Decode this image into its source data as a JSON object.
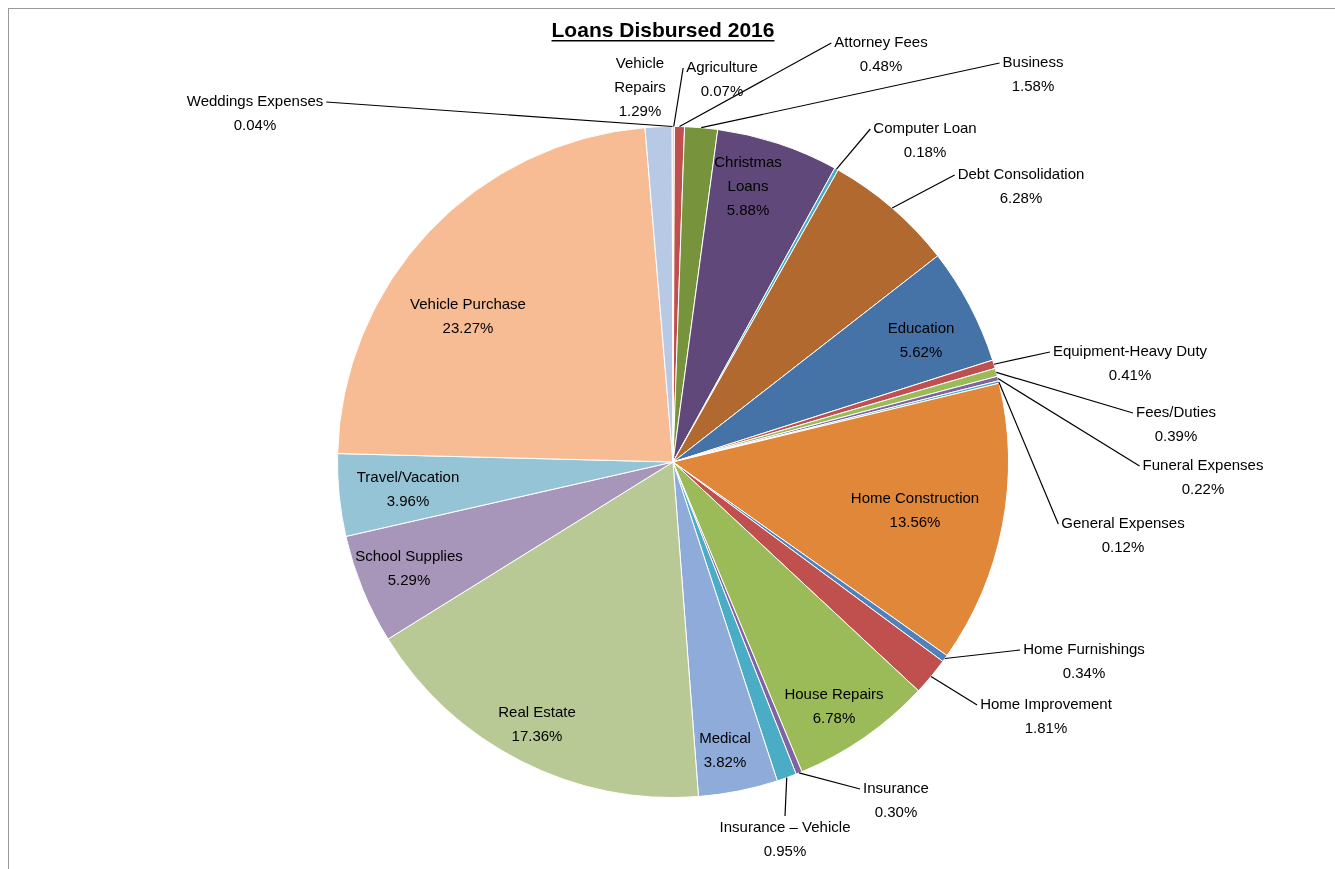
{
  "chart_data": {
    "type": "pie",
    "title": "Loans Disbursed 2016",
    "categories": [
      "Agriculture",
      "Attorney Fees",
      "Business",
      "Christmas Loans",
      "Computer Loan",
      "Debt Consolidation",
      "Education",
      "Equipment-Heavy Duty",
      "Fees/Duties",
      "Funeral Expenses",
      "General Expenses",
      "Home Construction",
      "Home Furnishings",
      "Home Improvement",
      "House Repairs",
      "Insurance",
      "Insurance – Vehicle",
      "Medical",
      "Real Estate",
      "School Supplies",
      "Travel/Vacation",
      "Vehicle Purchase",
      "Vehicle Repairs",
      "Weddings Expenses"
    ],
    "values": [
      0.07,
      0.48,
      1.58,
      5.88,
      0.18,
      6.28,
      5.62,
      0.41,
      0.39,
      0.22,
      0.12,
      13.56,
      0.34,
      1.81,
      6.78,
      0.3,
      0.95,
      3.82,
      17.36,
      5.29,
      3.96,
      23.27,
      1.29,
      0.04
    ],
    "value_labels": [
      "0.07%",
      "0.48%",
      "1.58%",
      "5.88%",
      "0.18%",
      "6.28%",
      "5.62%",
      "0.41%",
      "0.39%",
      "0.22%",
      "0.12%",
      "13.56%",
      "0.34%",
      "1.81%",
      "6.78%",
      "0.30%",
      "0.95%",
      "3.82%",
      "17.36%",
      "5.29%",
      "3.96%",
      "23.27%",
      "1.29%",
      "0.04%"
    ],
    "colors": [
      "#3b5f8a",
      "#c0504d",
      "#77933c",
      "#60497a",
      "#4bacc6",
      "#b1692f",
      "#4573a7",
      "#c0504d",
      "#9bbb59",
      "#8064a2",
      "#4bacc6",
      "#e0873a",
      "#4f81bd",
      "#c0504d",
      "#9bbb59",
      "#8064a2",
      "#4bacc6",
      "#8eabd9",
      "#b9c995",
      "#a796ba",
      "#95c4d6",
      "#f7bc94",
      "#b8c9e6",
      "#d99694"
    ],
    "legend": false
  }
}
